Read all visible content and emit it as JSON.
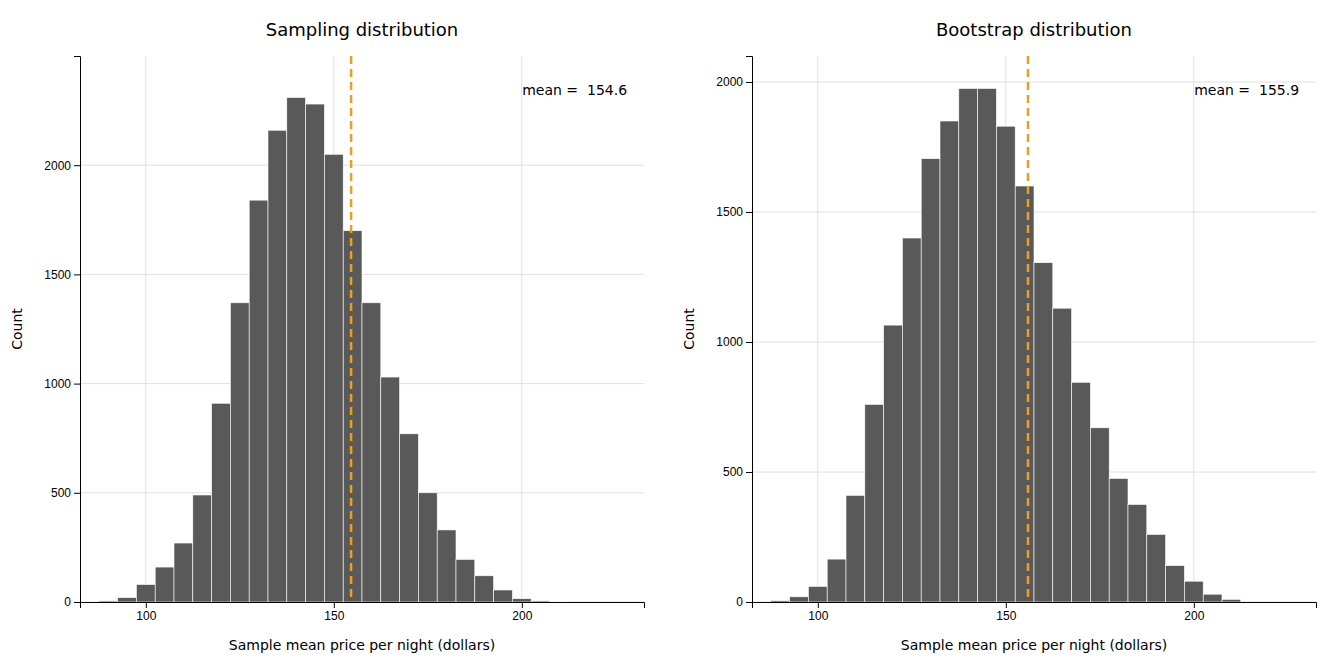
{
  "chart_data": [
    {
      "type": "histogram",
      "title": "Sampling distribution",
      "xlabel": "Sample mean price per night (dollars)",
      "ylabel": "Count",
      "bins": [
        82.5,
        87.5,
        92.5,
        97.5,
        102.5,
        107.5,
        112.5,
        117.5,
        122.5,
        127.5,
        132.5,
        137.5,
        142.5,
        147.5,
        152.5,
        157.5,
        162.5,
        167.5,
        172.5,
        177.5,
        182.5,
        187.5,
        192.5,
        197.5,
        202.5,
        207.5,
        212.5
      ],
      "values": [
        2,
        5,
        20,
        80,
        160,
        270,
        490,
        910,
        1370,
        1840,
        2160,
        2310,
        2280,
        2050,
        1700,
        1370,
        1030,
        770,
        500,
        330,
        195,
        120,
        55,
        15,
        5,
        2
      ],
      "color": "#595959",
      "mean": {
        "value": 154.6,
        "label": "mean =  154.6",
        "color": "#E8A020",
        "line_style": "dashed"
      },
      "xlim": [
        82.5,
        232.5
      ],
      "xticks": [
        100,
        150,
        200
      ],
      "ylim": [
        0,
        2500
      ],
      "yticks": [
        0,
        500,
        1000,
        1500,
        2000
      ],
      "grid": true
    },
    {
      "type": "histogram",
      "title": "Bootstrap distribution",
      "xlabel": "Sample mean price per night (dollars)",
      "ylabel": "Count",
      "bins": [
        82.5,
        87.5,
        92.5,
        97.5,
        102.5,
        107.5,
        112.5,
        117.5,
        122.5,
        127.5,
        132.5,
        137.5,
        142.5,
        147.5,
        152.5,
        157.5,
        162.5,
        167.5,
        172.5,
        177.5,
        182.5,
        187.5,
        192.5,
        197.5,
        202.5,
        207.5,
        212.5
      ],
      "values": [
        2,
        5,
        20,
        60,
        165,
        410,
        760,
        1065,
        1400,
        1705,
        1850,
        1975,
        1975,
        1830,
        1600,
        1305,
        1130,
        845,
        670,
        475,
        375,
        260,
        140,
        80,
        30,
        10
      ],
      "color": "#595959",
      "mean": {
        "value": 155.9,
        "label": "mean =  155.9",
        "color": "#E8A020",
        "line_style": "dashed"
      },
      "xlim": [
        82.5,
        232.5
      ],
      "xticks": [
        100,
        150,
        200
      ],
      "ylim": [
        0,
        2100
      ],
      "yticks": [
        0,
        500,
        1000,
        1500,
        2000
      ],
      "grid": true
    }
  ]
}
